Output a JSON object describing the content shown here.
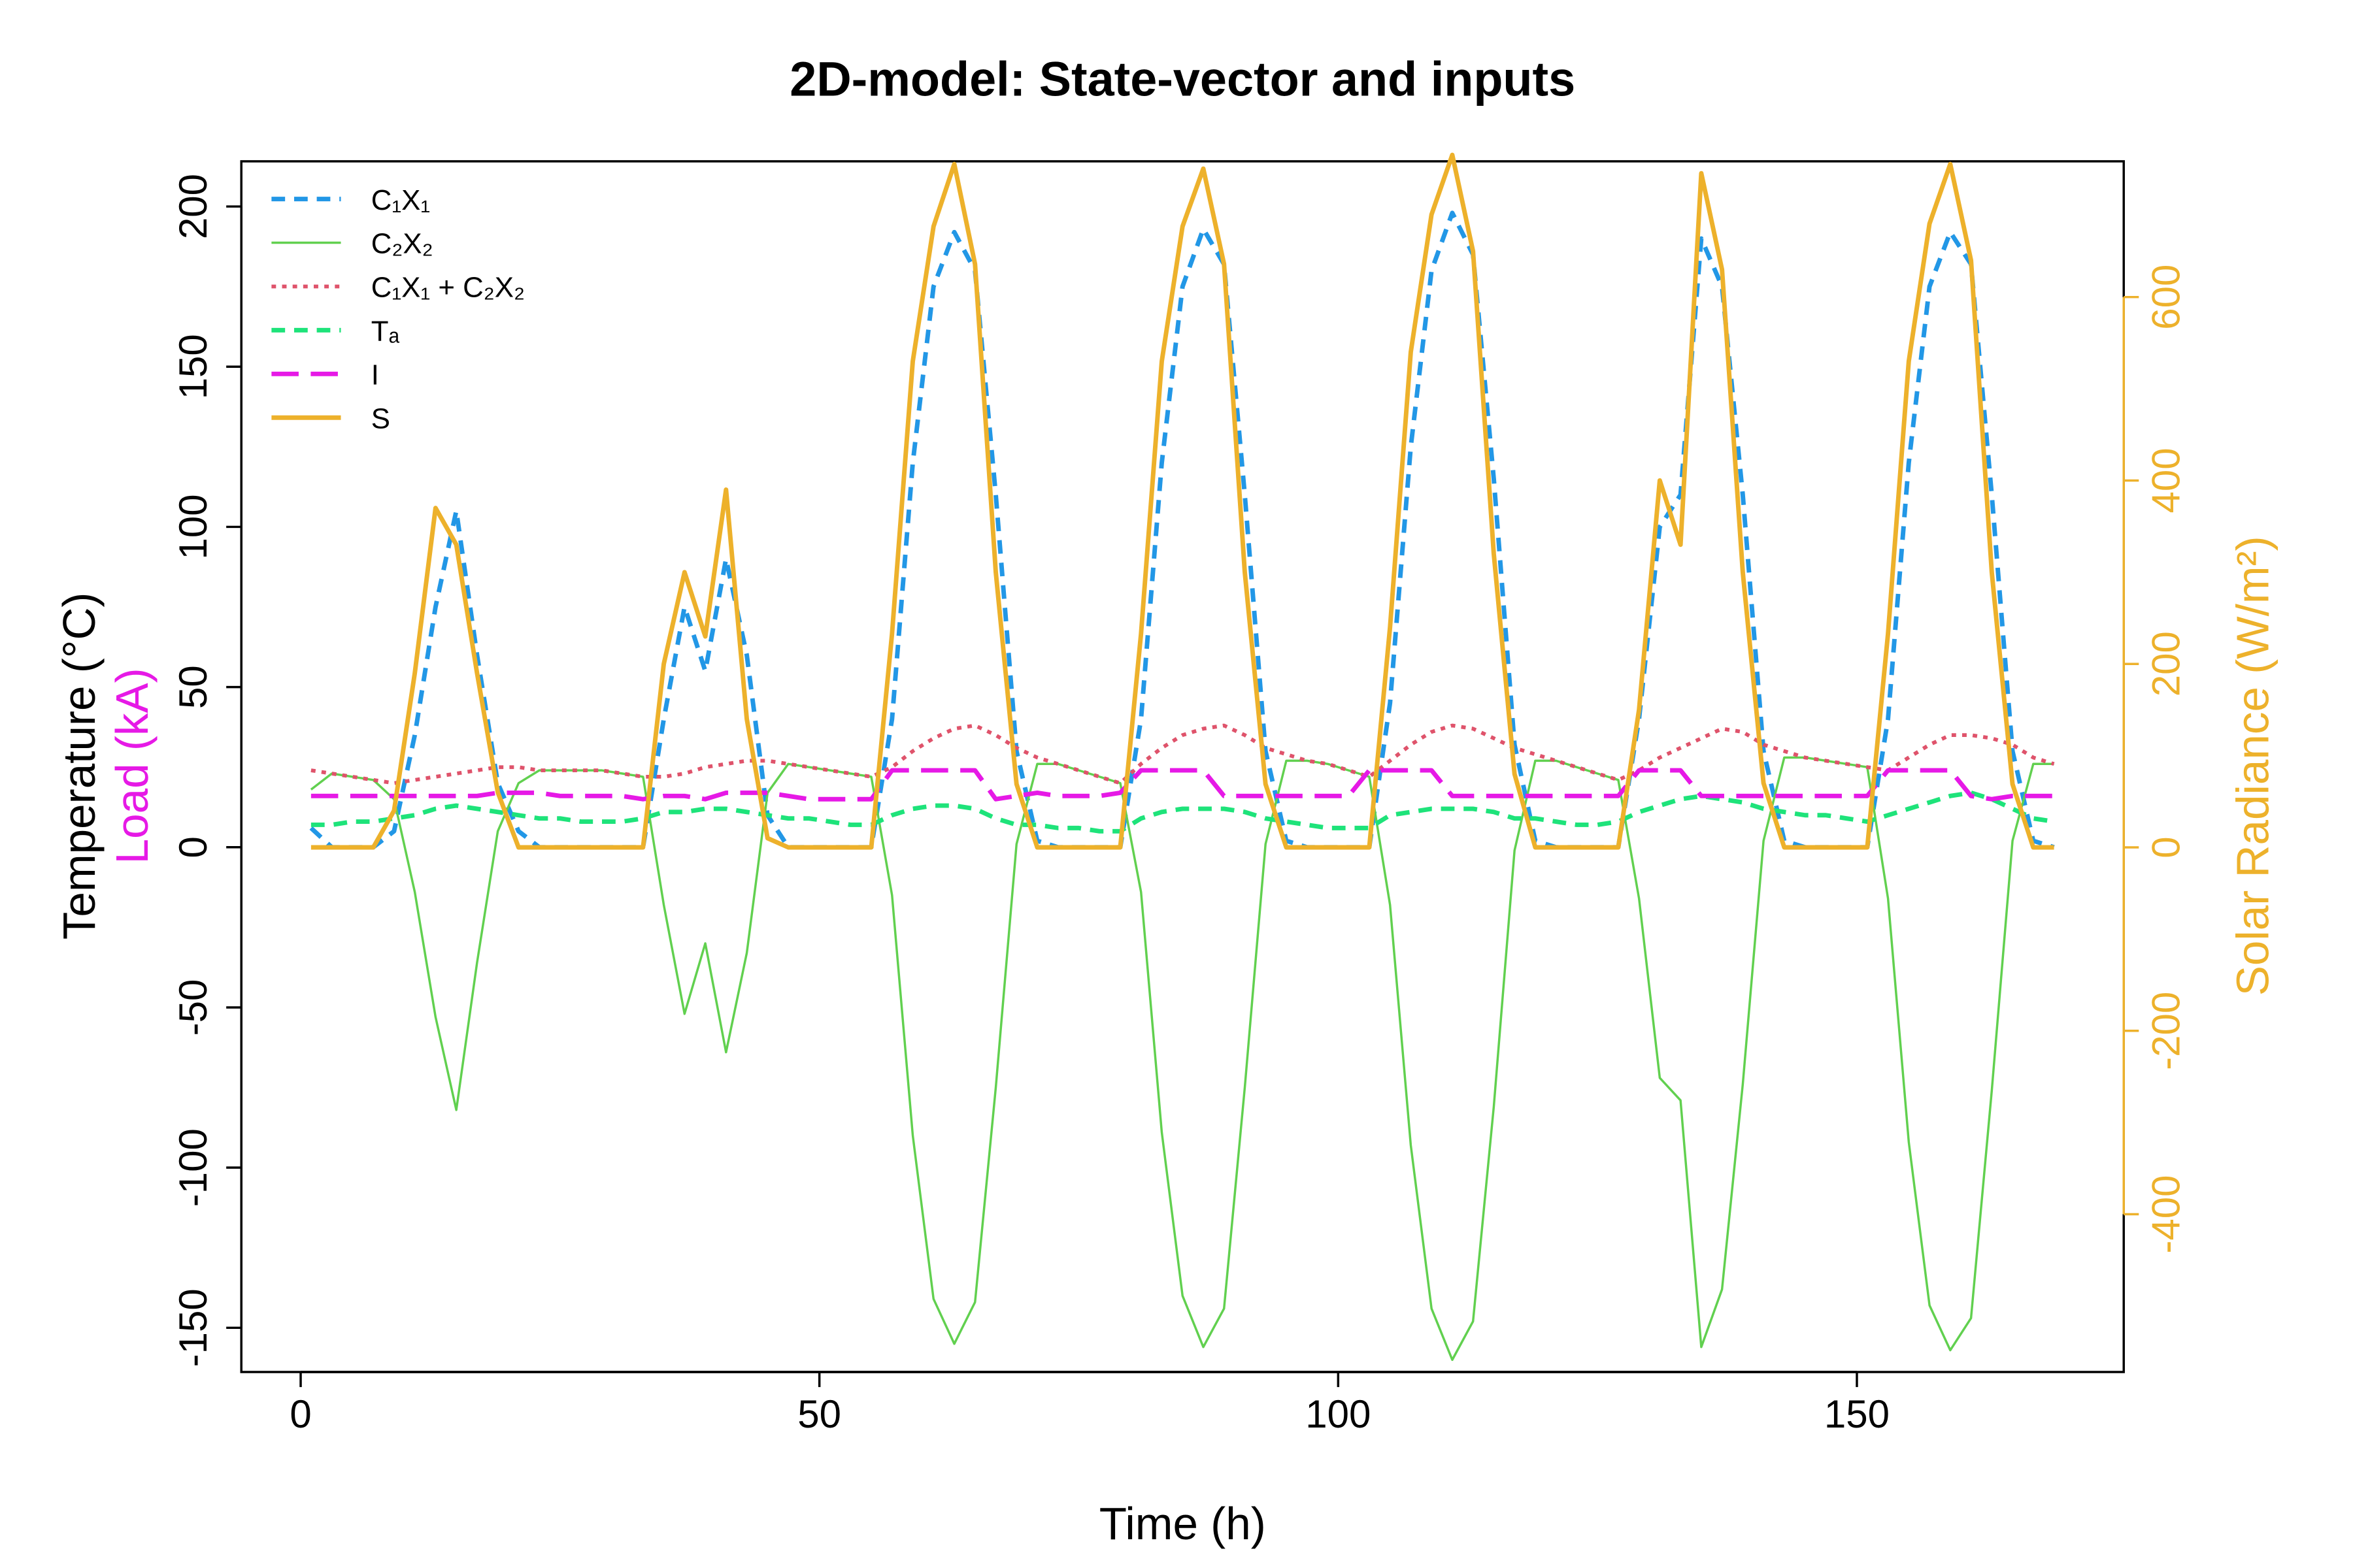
{
  "chart_data": {
    "type": "line",
    "title": "2D-model: State-vector and inputs",
    "xlabel": "Time (h)",
    "ylabel": "Temperature (°C)",
    "ylabel2": "Load (kA)",
    "y2label": "Solar Radiance (W/m²)",
    "xlim": [
      -5.72,
      175.72
    ],
    "xticks": [
      0,
      50,
      100,
      150
    ],
    "ylim": [
      -163.8,
      214.1
    ],
    "yticks": [
      -150,
      -100,
      -50,
      0,
      50,
      100,
      150,
      200
    ],
    "y2lim": [
      -572,
      748
    ],
    "y2ticks": [
      -400,
      -200,
      0,
      200,
      400,
      600
    ],
    "legend": "top-left",
    "x": [
      1,
      3,
      5,
      7,
      9,
      11,
      13,
      15,
      17,
      19,
      21,
      23,
      25,
      27,
      29,
      31,
      33,
      35,
      37,
      39,
      41,
      43,
      45,
      47,
      49,
      51,
      53,
      55,
      57,
      59,
      61,
      63,
      65,
      67,
      69,
      71,
      73,
      75,
      77,
      79,
      81,
      83,
      85,
      87,
      89,
      91,
      93,
      95,
      97,
      99,
      101,
      103,
      105,
      107,
      109,
      111,
      113,
      115,
      117,
      119,
      121,
      123,
      125,
      127,
      129,
      131,
      133,
      135,
      137,
      139,
      141,
      143,
      145,
      147,
      149,
      151,
      153,
      155,
      157,
      159,
      161,
      163,
      165,
      167,
      169
    ],
    "series": [
      {
        "name": "C₁X₁",
        "color": "#2297E6",
        "dash": "9,6",
        "width": 3,
        "values": [
          6,
          0,
          0,
          0,
          5,
          35,
          75,
          105,
          60,
          20,
          5,
          0,
          0,
          0,
          0,
          0,
          0,
          40,
          75,
          55,
          90,
          60,
          10,
          0,
          0,
          0,
          0,
          0,
          40,
          120,
          175,
          192,
          180,
          110,
          30,
          2,
          0,
          0,
          0,
          0,
          40,
          120,
          175,
          193,
          182,
          110,
          30,
          2,
          0,
          0,
          0,
          0,
          45,
          125,
          180,
          198,
          185,
          115,
          32,
          2,
          0,
          0,
          0,
          0,
          40,
          100,
          110,
          190,
          175,
          110,
          30,
          2,
          0,
          0,
          0,
          0,
          40,
          120,
          175,
          192,
          182,
          110,
          30,
          2,
          0
        ]
      },
      {
        "name": "C₂X₂",
        "color": "#61D04F",
        "dash": "none",
        "width": 1.5,
        "values": [
          18,
          23,
          22,
          21,
          15,
          -14,
          -53,
          -82,
          -36,
          5,
          20,
          24,
          24,
          24,
          24,
          23,
          22,
          -18,
          -52,
          -30,
          -64,
          -33,
          17,
          26,
          25,
          24,
          23,
          22,
          -15,
          -90,
          -141,
          -155,
          -142,
          -75,
          1,
          26,
          26,
          24,
          22,
          20,
          -14,
          -89,
          -140,
          -156,
          -144,
          -75,
          1,
          27,
          27,
          26,
          24,
          22,
          -18,
          -93,
          -144,
          -160,
          -148,
          -81,
          -1,
          27,
          27,
          25,
          23,
          21,
          -16,
          -72,
          -79,
          -156,
          -138,
          -74,
          2,
          28,
          28,
          27,
          26,
          25,
          -16,
          -92,
          -143,
          -157,
          -147,
          -76,
          2,
          26,
          26
        ]
      },
      {
        "name": "C₁X₁ + C₂X₂",
        "color": "#DF536B",
        "dash": "3,4",
        "width": 2.5,
        "values": [
          24,
          23,
          22,
          21,
          20,
          21,
          22,
          23,
          24,
          25,
          25,
          24,
          24,
          24,
          24,
          23,
          22,
          22,
          23,
          25,
          26,
          27,
          27,
          26,
          25,
          24,
          23,
          22,
          25,
          30,
          34,
          37,
          38,
          35,
          31,
          28,
          26,
          24,
          22,
          20,
          26,
          31,
          35,
          37,
          38,
          35,
          31,
          29,
          27,
          26,
          24,
          22,
          27,
          32,
          36,
          38,
          37,
          34,
          31,
          29,
          27,
          25,
          23,
          21,
          24,
          28,
          31,
          34,
          37,
          36,
          32,
          30,
          28,
          27,
          26,
          25,
          24,
          28,
          32,
          35,
          35,
          34,
          32,
          28,
          26
        ]
      },
      {
        "name": "Tₐ",
        "color": "#1EE37A",
        "dash": "9,6",
        "width": 3,
        "values": [
          7,
          7,
          8,
          8,
          9,
          10,
          12,
          13,
          12,
          11,
          10,
          9,
          9,
          8,
          8,
          8,
          9,
          11,
          11,
          12,
          12,
          11,
          10,
          9,
          9,
          8,
          7,
          7,
          10,
          12,
          13,
          13,
          12,
          9,
          7,
          7,
          6,
          6,
          5,
          5,
          9,
          11,
          12,
          12,
          12,
          11,
          9,
          8,
          7,
          6,
          6,
          6,
          10,
          11,
          12,
          12,
          12,
          11,
          9,
          9,
          8,
          7,
          7,
          8,
          11,
          13,
          15,
          16,
          15,
          14,
          12,
          11,
          10,
          10,
          9,
          8,
          10,
          12,
          14,
          16,
          17,
          15,
          12,
          9,
          8
        ]
      },
      {
        "name": "I",
        "color": "#E619E6",
        "dash": "18,8",
        "width": 3,
        "values": [
          16,
          16,
          16,
          16,
          16,
          16,
          16,
          16,
          16,
          17,
          17,
          17,
          16,
          16,
          16,
          16,
          15,
          16,
          16,
          15,
          17,
          17,
          17,
          16,
          15,
          15,
          15,
          15,
          24,
          24,
          24,
          24,
          24,
          15,
          16,
          17,
          16,
          16,
          16,
          17,
          24,
          24,
          24,
          24,
          16,
          16,
          16,
          16,
          16,
          16,
          16,
          24,
          24,
          24,
          24,
          16,
          16,
          16,
          16,
          16,
          16,
          16,
          16,
          16,
          24,
          24,
          24,
          16,
          16,
          16,
          16,
          16,
          16,
          16,
          16,
          16,
          24,
          24,
          24,
          24,
          16,
          15,
          16,
          16,
          16
        ]
      },
      {
        "name": "S",
        "color": "#EDB12B",
        "dash": "none",
        "width": 3,
        "axis": "y2",
        "values": [
          0,
          0,
          0,
          0,
          40,
          190,
          370,
          330,
          190,
          60,
          0,
          0,
          0,
          0,
          0,
          0,
          0,
          200,
          300,
          230,
          390,
          140,
          10,
          0,
          0,
          0,
          0,
          0,
          233,
          530,
          677,
          745,
          636,
          300,
          69,
          0,
          0,
          0,
          0,
          0,
          233,
          530,
          677,
          740,
          636,
          300,
          69,
          0,
          0,
          0,
          0,
          0,
          240,
          540,
          690,
          755,
          650,
          320,
          80,
          0,
          0,
          0,
          0,
          0,
          150,
          400,
          330,
          735,
          630,
          300,
          70,
          0,
          0,
          0,
          0,
          0,
          233,
          530,
          680,
          745,
          640,
          300,
          69,
          0,
          0
        ]
      }
    ]
  }
}
